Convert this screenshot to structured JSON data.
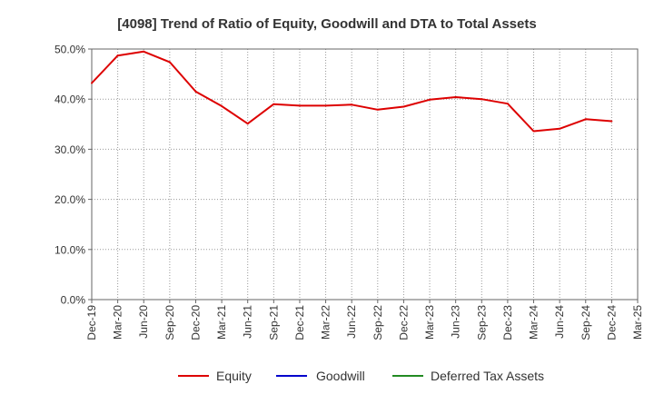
{
  "chart_data": {
    "type": "line",
    "title": "[4098]  Trend of Ratio of Equity, Goodwill and DTA to Total Assets",
    "xlabel": "",
    "ylabel": "",
    "ylim": [
      0,
      50
    ],
    "yticks": [
      0,
      10,
      20,
      30,
      40,
      50
    ],
    "ytick_labels": [
      "0.0%",
      "10.0%",
      "20.0%",
      "30.0%",
      "40.0%",
      "50.0%"
    ],
    "x_tick_labels": [
      "Dec-19",
      "Mar-20",
      "Jun-20",
      "Sep-20",
      "Dec-20",
      "Mar-21",
      "Jun-21",
      "Sep-21",
      "Dec-21",
      "Mar-22",
      "Jun-22",
      "Sep-22",
      "Dec-22",
      "Mar-23",
      "Jun-23",
      "Sep-23",
      "Dec-23",
      "Mar-24",
      "Jun-24",
      "Sep-24",
      "Dec-24",
      "Mar-25"
    ],
    "grid": true,
    "legend_position": "bottom",
    "series": [
      {
        "name": "Equity",
        "color": "#dd0000",
        "values": [
          43.2,
          48.7,
          49.5,
          47.4,
          41.5,
          38.6,
          35.1,
          39.0,
          38.7,
          38.7,
          38.9,
          37.9,
          38.5,
          39.9,
          40.4,
          40.0,
          39.1,
          33.6,
          34.1,
          36.0,
          35.6,
          null
        ]
      },
      {
        "name": "Goodwill",
        "color": "#0000cc",
        "values": []
      },
      {
        "name": "Deferred Tax Assets",
        "color": "#228b22",
        "values": []
      }
    ]
  }
}
